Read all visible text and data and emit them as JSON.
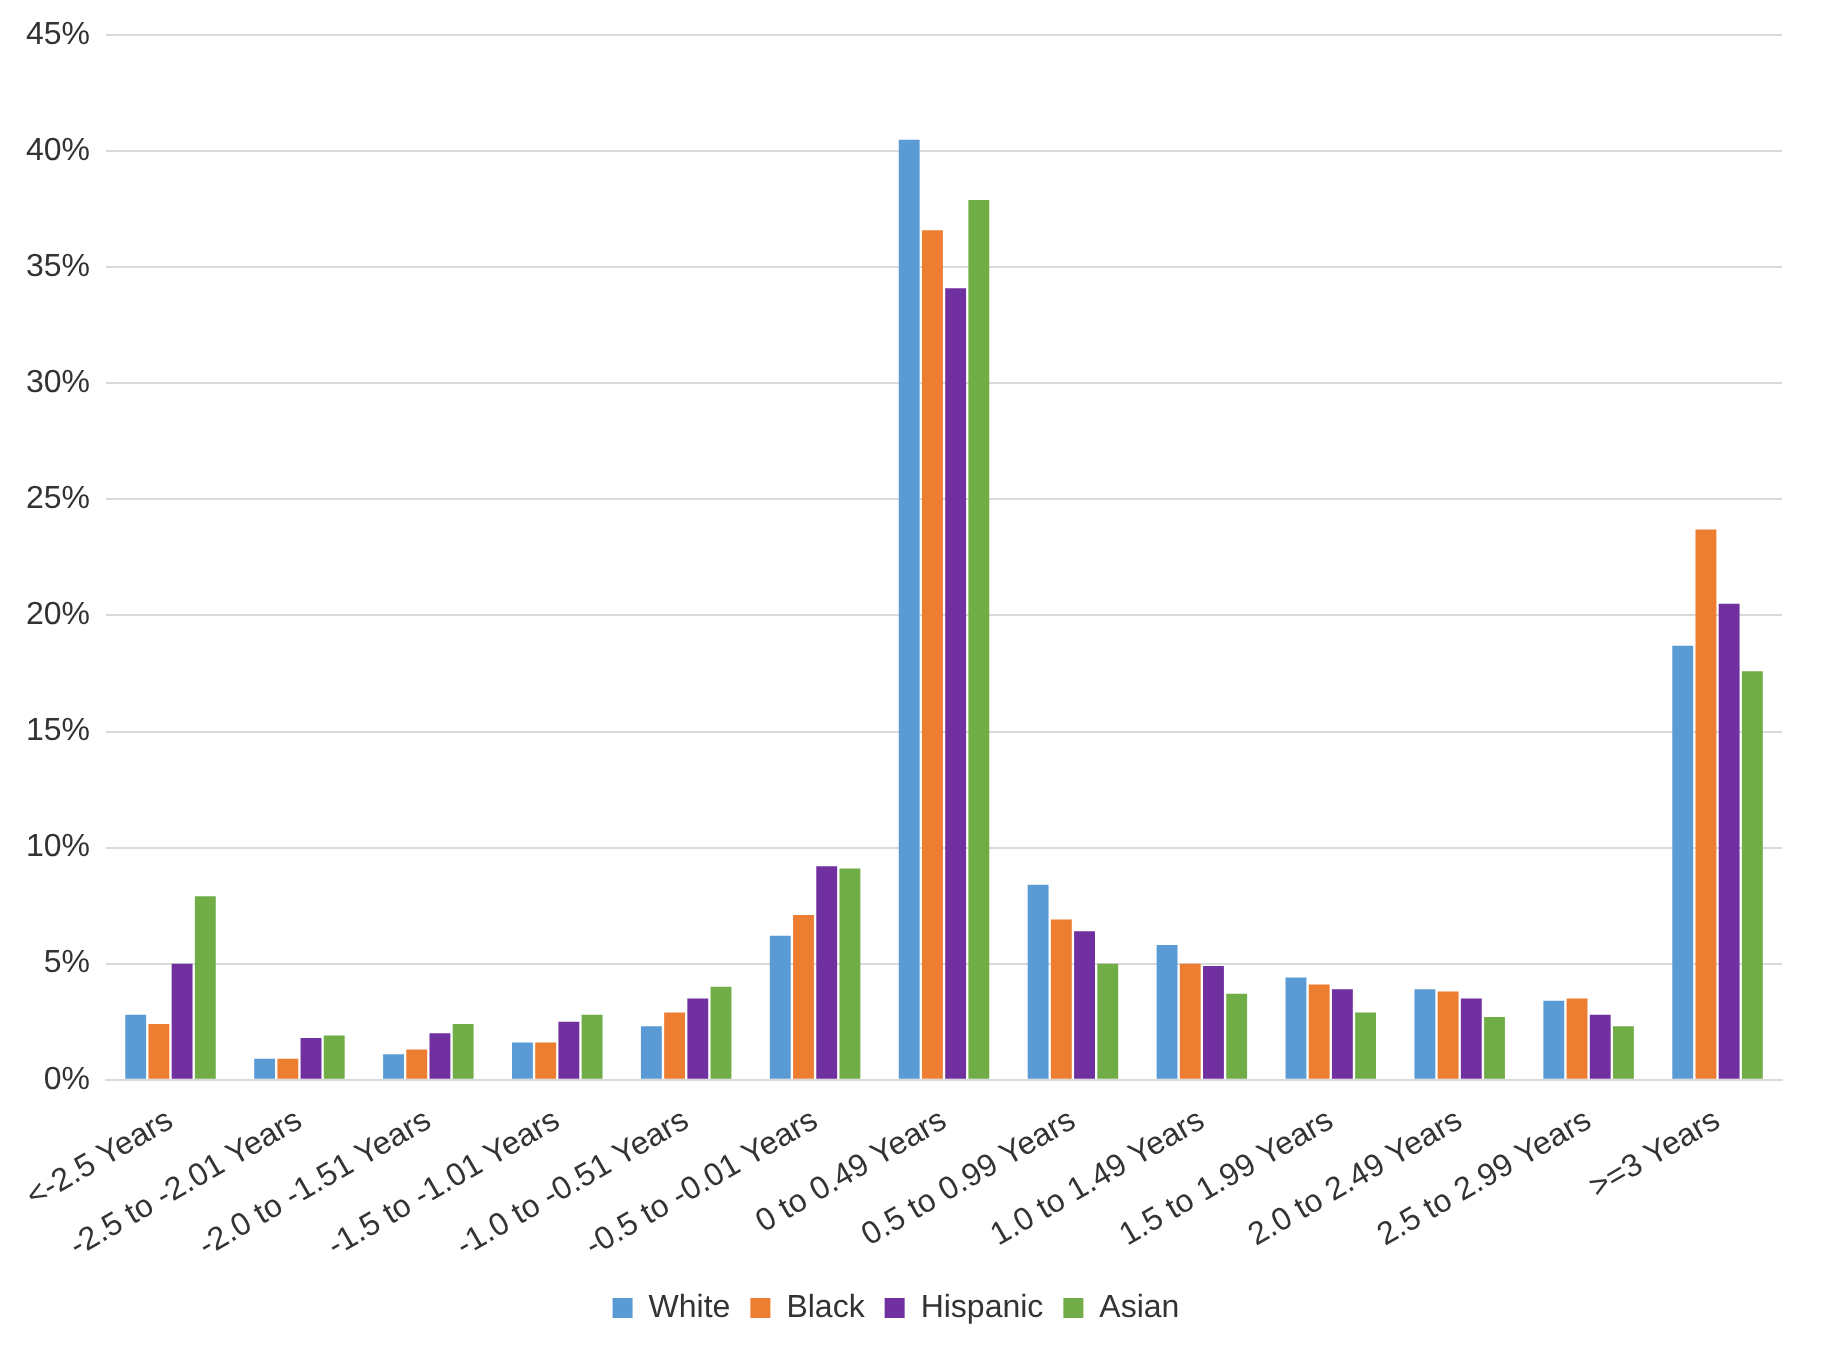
{
  "chart_data": {
    "type": "bar",
    "categories": [
      "<-2.5 Years",
      "-2.5 to -2.01 Years",
      "-2.0 to -1.51 Years",
      "-1.5 to -1.01 Years",
      "-1.0 to -0.51 Years",
      "-0.5 to -0.01 Years",
      "0 to 0.49 Years",
      "0.5 to 0.99 Years",
      "1.0 to 1.49 Years",
      "1.5 to 1.99 Years",
      "2.0 to 2.49 Years",
      "2.5 to 2.99 Years",
      ">=3 Years"
    ],
    "series": [
      {
        "name": "White",
        "color": "#5b9bd5",
        "values": [
          2.8,
          0.9,
          1.1,
          1.6,
          2.3,
          6.2,
          40.5,
          8.4,
          5.8,
          4.4,
          3.9,
          3.4,
          18.7
        ]
      },
      {
        "name": "Black",
        "color": "#ed7d31",
        "values": [
          2.4,
          0.9,
          1.3,
          1.6,
          2.9,
          7.1,
          36.6,
          6.9,
          5.0,
          4.1,
          3.8,
          3.5,
          23.7
        ]
      },
      {
        "name": "Hispanic",
        "color": "#7030a0",
        "values": [
          5.0,
          1.8,
          2.0,
          2.5,
          3.5,
          9.2,
          34.1,
          6.4,
          4.9,
          3.9,
          3.5,
          2.8,
          20.5
        ]
      },
      {
        "name": "Asian",
        "color": "#70ad47",
        "values": [
          7.9,
          1.9,
          2.4,
          2.8,
          4.0,
          9.1,
          37.9,
          5.0,
          3.7,
          2.9,
          2.7,
          2.3,
          17.6
        ]
      }
    ],
    "ylim": [
      0,
      45
    ],
    "yticks": [
      {
        "value": 0,
        "label": "0%"
      },
      {
        "value": 5,
        "label": "5%"
      },
      {
        "value": 10,
        "label": "10%"
      },
      {
        "value": 15,
        "label": "15%"
      },
      {
        "value": 20,
        "label": "20%"
      },
      {
        "value": 25,
        "label": "25%"
      },
      {
        "value": 30,
        "label": "30%"
      },
      {
        "value": 35,
        "label": "35%"
      },
      {
        "value": 40,
        "label": "40%"
      },
      {
        "value": 45,
        "label": "45%"
      }
    ],
    "grid": "y",
    "legend": "bottom"
  }
}
